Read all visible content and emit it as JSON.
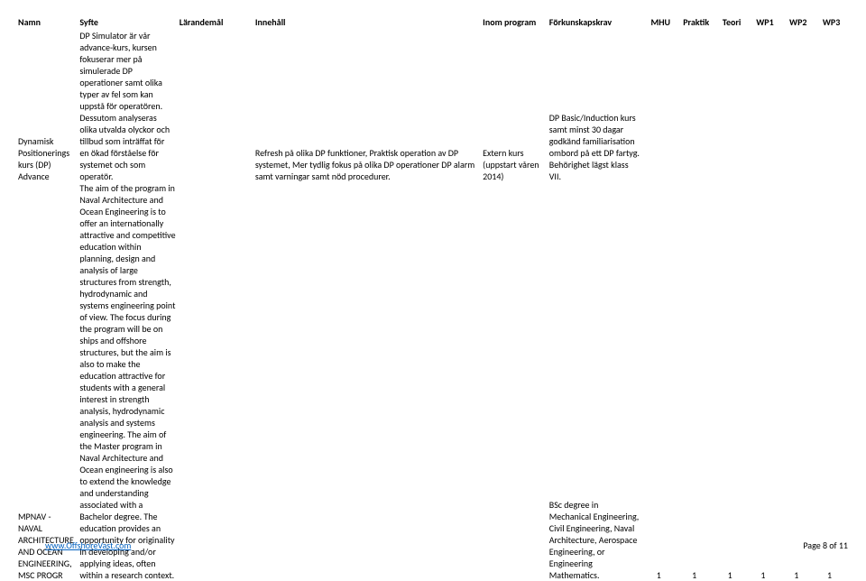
{
  "columns": {
    "namn": "Namn",
    "syfte": "Syfte",
    "larandemal": "Lärandemål",
    "innehall": "Innehåll",
    "inom": "Inom program",
    "forkunskap": "Förkunskapskrav",
    "mhu": "MHU",
    "praktik": "Praktik",
    "teori": "Teori",
    "wp1": "WP1",
    "wp2": "WP2",
    "wp3": "WP3"
  },
  "rows": [
    {
      "namn": "Dynamisk Positionerings kurs (DP) Advance",
      "syfte": "DP Simulator är vår advance-kurs, kursen fokuserar mer på simulerade DP operationer samt olika typer av fel som kan uppstå för operatören. Dessutom analyseras olika utvalda olyckor och tillbud som inträffat för en ökad förståelse för systemet och som operatör.",
      "larandemal": "",
      "innehall": "Refresh på olika DP funktioner,  Praktisk operation av DP systemet, Mer tydlig fokus på olika DP operationer DP alarm samt  varningar samt nöd procedurer.",
      "inom": "Extern kurs (uppstart våren 2014)",
      "forkunskap": "DP Basic/Induction kurs samt minst 30 dagar godkänd familiarisation ombord på ett DP fartyg. Behörighet lägst klass VII.",
      "mhu": "",
      "praktik": "",
      "teori": "",
      "wp1": "",
      "wp2": "",
      "wp3": ""
    },
    {
      "namn": "MPNAV - NAVAL ARCHITECTURE AND OCEAN ENGINEERING, MSC PROGR",
      "syfte": "The aim of the program in Naval Architecture and Ocean Engineering is to offer an internationally attractive and competitive education within planning, design and analysis of large structures from strength, hydrodynamic and systems engineering point of view. The focus during the program will be on ships and offshore structures, but the aim is also to make the education attractive for students with a general interest in strength analysis, hydrodynamic analysis and systems engineering. The aim of the Master program in Naval Architecture and Ocean engineering is also to extend the knowledge and understanding associated with a Bachelor degree. The education provides an opportunity for originality in developing and/or applying ideas, often within a research context.",
      "larandemal": "",
      "innehall": "",
      "inom": "",
      "forkunskap": "BSc degree  in Mechanical Engineering, Civil Engineering, Naval Architecture, Aerospace Engineering, or Engineering Mathematics.",
      "mhu": "1",
      "praktik": "1",
      "teori": "1",
      "wp1": "1",
      "wp2": "1",
      "wp3": "1"
    }
  ],
  "footer": {
    "link": "www.OffshoreVast.com",
    "page": "Page 8 of 11"
  },
  "widths": {
    "namn": 65,
    "syfte": 105,
    "larandemal": 80,
    "innehall": 240,
    "inom": 70,
    "forkunskap": 100,
    "mhu": 35,
    "praktik": 40,
    "teori": 35,
    "wp1": 35,
    "wp2": 35,
    "wp3": 35
  }
}
